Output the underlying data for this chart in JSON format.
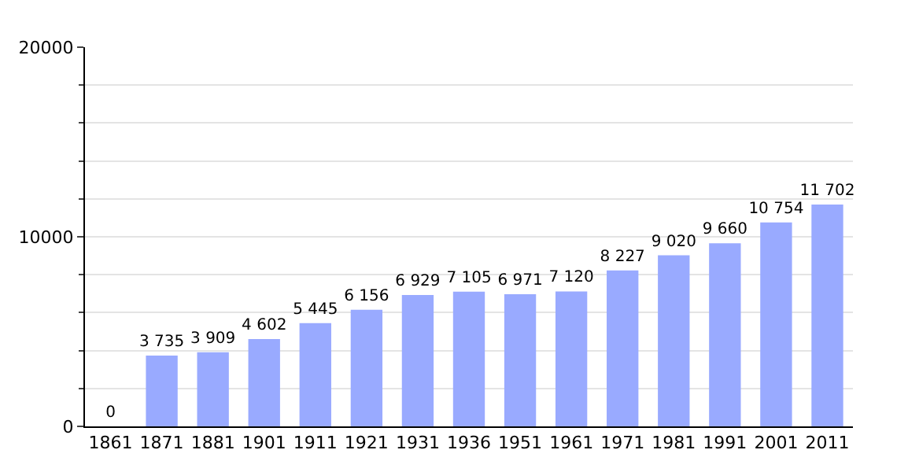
{
  "chart_data": {
    "type": "bar",
    "categories": [
      "1861",
      "1871",
      "1881",
      "1901",
      "1911",
      "1921",
      "1931",
      "1936",
      "1951",
      "1961",
      "1971",
      "1981",
      "1991",
      "2001",
      "2011"
    ],
    "values": [
      0,
      3735,
      3909,
      4602,
      5445,
      6156,
      6929,
      7105,
      6971,
      7120,
      8227,
      9020,
      9660,
      10754,
      11702
    ],
    "value_labels": [
      "0",
      "3 735",
      "3 909",
      "4 602",
      "5 445",
      "6 156",
      "6 929",
      "7 105",
      "6 971",
      "7 120",
      "8 227",
      "9 020",
      "9 660",
      "10 754",
      "11 702"
    ],
    "color": "#99aaff",
    "ylim": [
      0,
      20000
    ],
    "yticks": [
      0,
      {
        "value": 2000,
        "label": null
      },
      {
        "value": 4000,
        "label": null
      },
      {
        "value": 6000,
        "label": null
      },
      {
        "value": 8000,
        "label": null
      },
      10000,
      {
        "value": 12000,
        "label": null
      },
      {
        "value": 14000,
        "label": null
      },
      {
        "value": 16000,
        "label": null
      },
      {
        "value": 18000,
        "label": null
      },
      20000
    ],
    "grid": "y"
  }
}
